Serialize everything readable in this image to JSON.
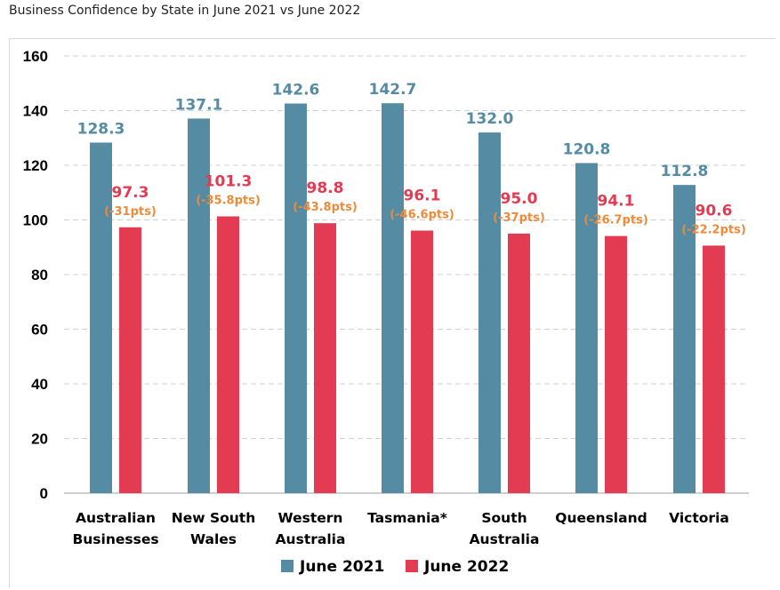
{
  "page": {
    "title": "Business Confidence by State in June 2021 vs June 2022"
  },
  "chart_data": {
    "type": "bar",
    "title": "Business Confidence by State in June 2021 vs June 2022",
    "xlabel": "",
    "ylabel": "",
    "ylim": [
      0,
      160
    ],
    "yticks": [
      0,
      20,
      40,
      60,
      80,
      100,
      120,
      140,
      160
    ],
    "grid": true,
    "legend_position": "bottom",
    "categories": [
      [
        "Australian",
        "Businesses"
      ],
      [
        "New South",
        "Wales"
      ],
      [
        "Western",
        "Australia"
      ],
      [
        "Tasmania*"
      ],
      [
        "South",
        "Australia"
      ],
      [
        "Queensland"
      ],
      [
        "Victoria"
      ]
    ],
    "series": [
      {
        "name": "June 2021",
        "color": "#558ba3",
        "values": [
          128.3,
          137.1,
          142.6,
          142.7,
          132.0,
          120.8,
          112.8
        ],
        "labels": [
          "128.3",
          "137.1",
          "142.6",
          "142.7",
          "132.0",
          "120.8",
          "112.8"
        ]
      },
      {
        "name": "June 2022",
        "color": "#e33b52",
        "values": [
          97.3,
          101.3,
          98.8,
          96.1,
          95.0,
          94.1,
          90.6
        ],
        "labels": [
          "97.3",
          "101.3",
          "98.8",
          "96.1",
          "95.0",
          "94.1",
          "90.6"
        ],
        "change_labels": [
          "(-31pts)",
          "(-35.8pts)",
          "(-43.8pts)",
          "(-46.6pts)",
          "(-37pts)",
          "(-26.7pts)",
          "(-22.2pts)"
        ],
        "change_color": "#ed8b3a"
      }
    ]
  }
}
